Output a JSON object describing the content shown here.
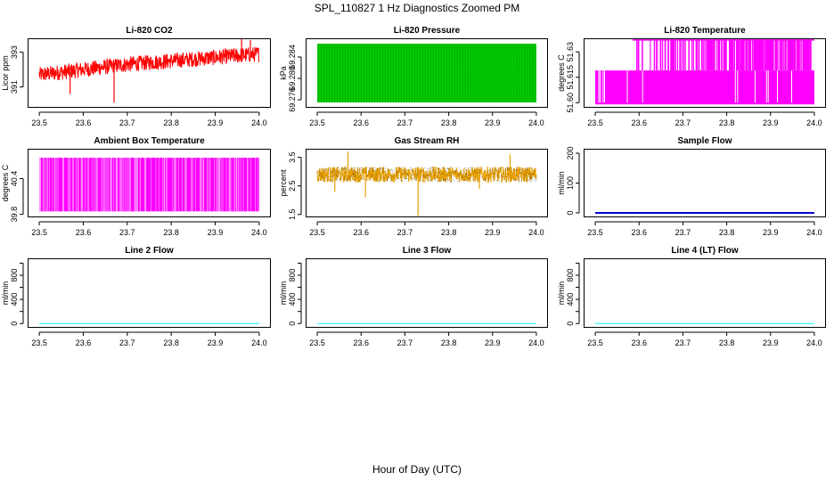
{
  "title": "SPL_110827  1 Hz Diagnostics Zoomed PM",
  "xlabel": "Hour of Day (UTC)",
  "chart_data": [
    {
      "type": "line",
      "title": "Li-820 CO2",
      "ylabel": "Licor ppm",
      "color": "#ff0000",
      "xlim": [
        23.5,
        24.0
      ],
      "ylim": [
        389.8,
        393.8
      ],
      "xticks": [
        "23.5",
        "23.6",
        "23.7",
        "23.8",
        "23.9",
        "24.0"
      ],
      "yticks": [
        391,
        393
      ],
      "ytick_labels": [
        "391",
        "393"
      ],
      "series": {
        "kind": "noise",
        "x": [
          23.5,
          23.6,
          23.7,
          23.8,
          23.9,
          24.0
        ],
        "center": [
          391.7,
          392.0,
          392.3,
          392.5,
          392.7,
          392.9
        ],
        "spread": 0.45,
        "spikes_low": [
          [
            23.67,
            390.1
          ],
          [
            23.57,
            390.6
          ]
        ],
        "spikes_high": [
          [
            23.96,
            393.8
          ],
          [
            23.98,
            393.7
          ]
        ]
      }
    },
    {
      "type": "line",
      "title": "Li-820 Pressure",
      "ylabel": "kPa",
      "color": "#00c800",
      "pattern": "#000000",
      "xlim": [
        23.5,
        24.0
      ],
      "ylim": [
        69.2745,
        69.2875
      ],
      "xticks": [
        "23.5",
        "23.6",
        "23.7",
        "23.8",
        "23.9",
        "24.0"
      ],
      "yticks": [
        69.276,
        69.28,
        69.284
      ],
      "ytick_labels": [
        "69.276",
        "69.280",
        "69.284"
      ],
      "series": {
        "kind": "quantized",
        "x_range": [
          23.5,
          24.0
        ],
        "levels": [
          69.2755,
          69.2865
        ]
      }
    },
    {
      "type": "line",
      "title": "Li-820 Temperature",
      "ylabel": "degrees C",
      "color": "#ff00ff",
      "xlim": [
        23.5,
        24.0
      ],
      "ylim": [
        51.597,
        51.638
      ],
      "xticks": [
        "23.5",
        "23.6",
        "23.7",
        "23.8",
        "23.9",
        "24.0"
      ],
      "yticks": [
        51.6,
        51.615,
        51.63
      ],
      "ytick_labels": [
        "51.60",
        "51.615",
        "51.63"
      ],
      "series": {
        "kind": "quantized",
        "x_range": [
          23.5,
          24.0
        ],
        "levels": [
          51.599,
          51.619,
          51.637
        ],
        "upper_start": 23.585
      }
    },
    {
      "type": "line",
      "title": "Ambient Box Temperature",
      "ylabel": "degrees C",
      "color": "#ff00ff",
      "xlim": [
        23.5,
        24.0
      ],
      "ylim": [
        39.75,
        40.9
      ],
      "xticks": [
        "23.5",
        "23.6",
        "23.7",
        "23.8",
        "23.9",
        "24.0"
      ],
      "yticks": [
        39.8,
        40.4
      ],
      "ytick_labels": [
        "39.8",
        "40.4"
      ],
      "series": {
        "kind": "quantized",
        "x_range": [
          23.5,
          24.0
        ],
        "levels": [
          39.85,
          40.75
        ]
      }
    },
    {
      "type": "line",
      "title": "Gas Stream RH",
      "ylabel": "percent",
      "color": "#e8a000",
      "pattern": "#000000",
      "xlim": [
        23.5,
        24.0
      ],
      "ylim": [
        1.4,
        3.8
      ],
      "xticks": [
        "23.5",
        "23.6",
        "23.7",
        "23.8",
        "23.9",
        "24.0"
      ],
      "yticks": [
        1.5,
        2.5,
        3.5
      ],
      "ytick_labels": [
        "1.5",
        "2.5",
        "3.5"
      ],
      "series": {
        "kind": "noise",
        "x": [
          23.5,
          24.0
        ],
        "center": [
          2.9,
          2.9
        ],
        "spread": 0.28,
        "spikes_low": [
          [
            23.73,
            1.45
          ],
          [
            23.61,
            2.1
          ],
          [
            23.54,
            2.3
          ],
          [
            23.87,
            2.4
          ]
        ],
        "spikes_high": [
          [
            23.57,
            3.7
          ],
          [
            23.94,
            3.6
          ]
        ]
      }
    },
    {
      "type": "line",
      "title": "Sample Flow",
      "ylabel": "ml/min",
      "color": "#0000cd",
      "xlim": [
        23.5,
        24.0
      ],
      "ylim": [
        -15,
        215
      ],
      "xticks": [
        "23.5",
        "23.6",
        "23.7",
        "23.8",
        "23.9",
        "24.0"
      ],
      "yticks": [
        0,
        100,
        200
      ],
      "ytick_labels": [
        "0",
        "100",
        "200"
      ],
      "series": {
        "kind": "flat",
        "x": [
          23.5,
          24.0
        ],
        "y": [
          0,
          0
        ]
      }
    },
    {
      "type": "line",
      "title": "Line 2 Flow",
      "ylabel": "ml/min",
      "color": "#00ffff",
      "xlim": [
        23.5,
        24.0
      ],
      "ylim": [
        -70,
        1080
      ],
      "xticks": [
        "23.5",
        "23.6",
        "23.7",
        "23.8",
        "23.9",
        "24.0"
      ],
      "yticks": [
        0,
        200,
        400,
        600,
        800,
        1000
      ],
      "ytick_labels": [
        "0",
        "400",
        "800"
      ],
      "series": {
        "kind": "flat",
        "x": [
          23.5,
          24.0
        ],
        "y": [
          0,
          0
        ]
      }
    },
    {
      "type": "line",
      "title": "Line 3 Flow",
      "ylabel": "ml/min",
      "color": "#00ffff",
      "xlim": [
        23.5,
        24.0
      ],
      "ylim": [
        -70,
        1080
      ],
      "xticks": [
        "23.5",
        "23.6",
        "23.7",
        "23.8",
        "23.9",
        "24.0"
      ],
      "yticks": [
        0,
        200,
        400,
        600,
        800,
        1000
      ],
      "ytick_labels": [
        "0",
        "400",
        "800"
      ],
      "series": {
        "kind": "flat",
        "x": [
          23.5,
          24.0
        ],
        "y": [
          0,
          0
        ]
      }
    },
    {
      "type": "line",
      "title": "Line 4 (LT) Flow",
      "ylabel": "ml/min",
      "color": "#00ffff",
      "xlim": [
        23.5,
        24.0
      ],
      "ylim": [
        -70,
        1080
      ],
      "xticks": [
        "23.5",
        "23.6",
        "23.7",
        "23.8",
        "23.9",
        "24.0"
      ],
      "yticks": [
        0,
        200,
        400,
        600,
        800,
        1000
      ],
      "ytick_labels": [
        "0",
        "400",
        "800"
      ],
      "series": {
        "kind": "flat",
        "x": [
          23.5,
          24.0
        ],
        "y": [
          0,
          0
        ]
      }
    }
  ]
}
